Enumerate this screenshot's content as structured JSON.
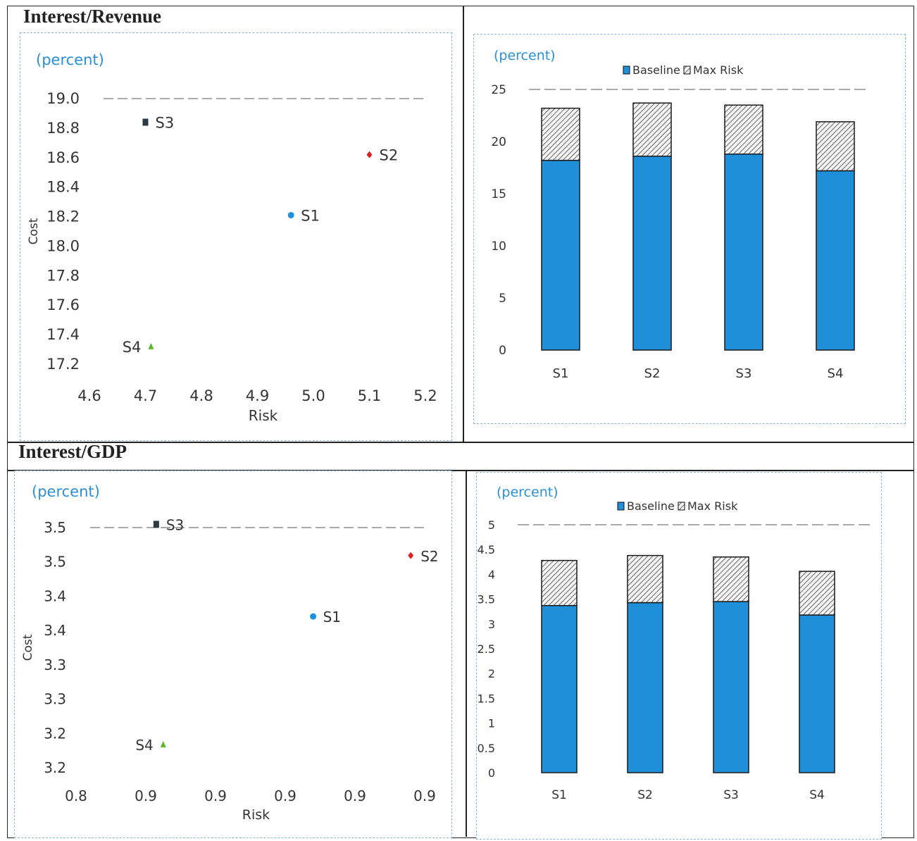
{
  "sections": [
    {
      "title": "Interest/Revenue"
    },
    {
      "title": "Interest/GDP"
    }
  ],
  "colors": {
    "baseline": "#1e8fd8",
    "bar_edge": "#1a1a1a",
    "unit_text": "#2b8fd8",
    "S1": "#1e90e0",
    "S2": "#e02020",
    "S3": "#2a3a45",
    "S4": "#5cb82a"
  },
  "chart_data": [
    {
      "type": "scatter",
      "id": "rev-scatter",
      "title": "",
      "unit": "(percent)",
      "xlabel": "Risk",
      "ylabel": "Cost",
      "xlim": [
        4.6,
        5.2
      ],
      "ylim": [
        17.2,
        19.0
      ],
      "xticks": [
        "4.6",
        "4.7",
        "4.8",
        "4.9",
        "5.0",
        "5.1",
        "5.2"
      ],
      "yticks": [
        "17.2",
        "17.4",
        "17.6",
        "17.8",
        "18.0",
        "18.2",
        "18.4",
        "18.6",
        "18.8",
        "19.0"
      ],
      "points": [
        {
          "name": "S1",
          "x": 4.96,
          "y": 18.21,
          "marker": "circle"
        },
        {
          "name": "S2",
          "x": 5.1,
          "y": 18.62,
          "marker": "diamond"
        },
        {
          "name": "S3",
          "x": 4.7,
          "y": 18.84,
          "marker": "square"
        },
        {
          "name": "S4",
          "x": 4.71,
          "y": 17.32,
          "marker": "triangle"
        }
      ],
      "grid": false
    },
    {
      "type": "bar",
      "id": "rev-bar",
      "stacked": true,
      "title": "",
      "unit": "(percent)",
      "categories": [
        "S1",
        "S2",
        "S3",
        "S4"
      ],
      "ylim": [
        0,
        25
      ],
      "yticks": [
        "0",
        "5",
        "10",
        "15",
        "20",
        "25"
      ],
      "series": [
        {
          "name": "Baseline",
          "values": [
            18.2,
            18.6,
            18.8,
            17.2
          ],
          "pattern": "solid"
        },
        {
          "name": "Max Risk",
          "values": [
            5.0,
            5.1,
            4.7,
            4.7
          ],
          "pattern": "hatch"
        }
      ],
      "legend": "top",
      "grid": false
    },
    {
      "type": "scatter",
      "id": "gdp-scatter",
      "title": "",
      "unit": "(percent)",
      "xlabel": "Risk",
      "ylabel": "Cost",
      "xlim": [
        0.8,
        0.9
      ],
      "ylim": [
        3.2,
        3.5
      ],
      "xticks": [
        "0.8",
        "0.9",
        "0.9",
        "0.9",
        "0.9",
        "0.9"
      ],
      "yticks": [
        "3.2",
        "3.2",
        "3.3",
        "3.3",
        "3.4",
        "3.4",
        "3.5",
        "3.5"
      ],
      "points": [
        {
          "name": "S1",
          "x": 0.868,
          "y": 3.389,
          "marker": "circle"
        },
        {
          "name": "S2",
          "x": 0.896,
          "y": 3.465,
          "marker": "diamond"
        },
        {
          "name": "S3",
          "x": 0.823,
          "y": 3.504,
          "marker": "square"
        },
        {
          "name": "S4",
          "x": 0.825,
          "y": 3.229,
          "marker": "triangle"
        }
      ],
      "grid": false
    },
    {
      "type": "bar",
      "id": "gdp-bar",
      "stacked": true,
      "title": "",
      "unit": "(percent)",
      "categories": [
        "S1",
        "S2",
        "S3",
        "S4"
      ],
      "ylim": [
        0,
        5
      ],
      "yticks": [
        "0",
        "0.5",
        "1",
        "1.5",
        "2",
        "2.5",
        "3",
        "3.5",
        "4",
        "4.5",
        "5"
      ],
      "series": [
        {
          "name": "Baseline",
          "values": [
            3.37,
            3.43,
            3.45,
            3.18
          ],
          "pattern": "solid"
        },
        {
          "name": "Max Risk",
          "values": [
            0.91,
            0.95,
            0.9,
            0.88
          ],
          "pattern": "hatch"
        }
      ],
      "legend": "top",
      "grid": false
    }
  ]
}
